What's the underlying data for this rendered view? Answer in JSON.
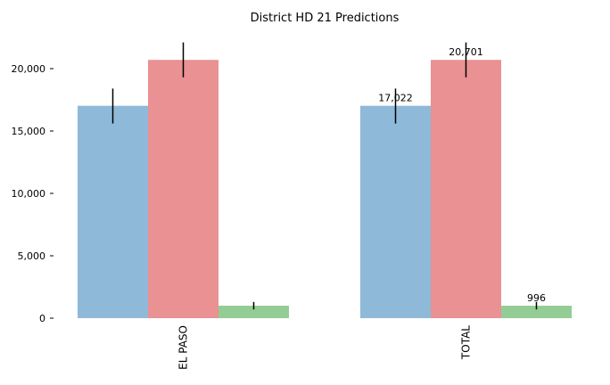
{
  "chart_data": {
    "type": "bar",
    "title": "District HD 21 Predictions",
    "categories": [
      "EL PASO",
      "TOTAL"
    ],
    "series": [
      {
        "values": [
          17022,
          17022
        ],
        "errors": [
          [
            15600,
            18400
          ],
          [
            15600,
            18400
          ]
        ],
        "color": "#8fb9d9"
      },
      {
        "values": [
          20701,
          20701
        ],
        "errors": [
          [
            19300,
            22100
          ],
          [
            19300,
            22100
          ]
        ],
        "color": "#e99193"
      },
      {
        "values": [
          996,
          996
        ],
        "errors": [
          [
            700,
            1300
          ],
          [
            700,
            1300
          ]
        ],
        "color": "#93cc95"
      }
    ],
    "data_labels": [
      [
        "",
        "17,022"
      ],
      [
        "",
        "20,701"
      ],
      [
        "",
        "996"
      ]
    ],
    "y_ticks": [
      0,
      5000,
      10000,
      15000,
      20000
    ],
    "y_tick_labels": [
      "0",
      "5,000",
      "10,000",
      "15,000",
      "20,000"
    ],
    "ylim": [
      0,
      23000
    ],
    "grid": false,
    "legend": "none"
  }
}
